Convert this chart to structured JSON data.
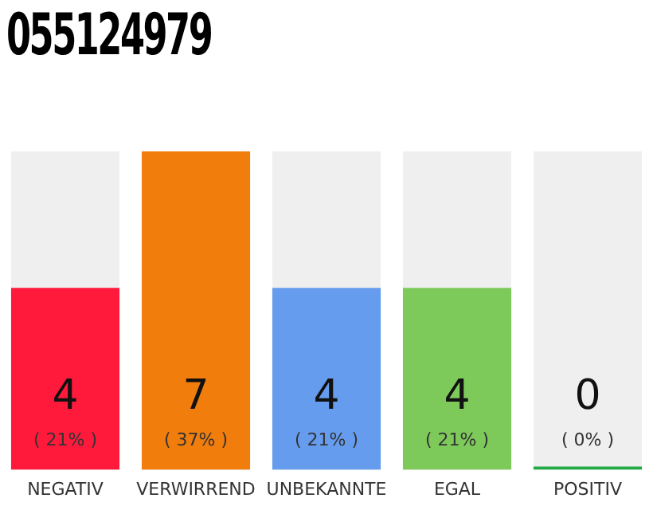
{
  "chart_data": {
    "type": "bar",
    "title": "055124979",
    "categories": [
      "NEGATIV",
      "VERWIRREND",
      "UNBEKANNTE",
      "EGAL",
      "POSITIV"
    ],
    "values": [
      4,
      7,
      4,
      4,
      0
    ],
    "colors": [
      "#ff1a3c",
      "#f07d0c",
      "#669ced",
      "#7dc95a",
      "#22aa44"
    ],
    "data_labels": true,
    "grid": false,
    "legend": false,
    "tick_labels": "x",
    "annotations": [
      "( 21% )",
      "( 37% )",
      "( 21% )",
      "( 21% )",
      "( 0% )"
    ]
  }
}
